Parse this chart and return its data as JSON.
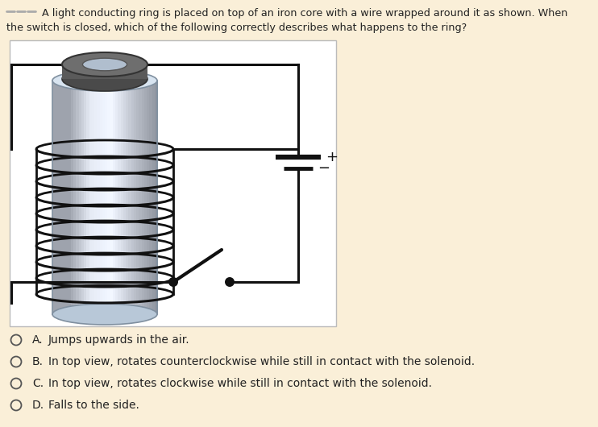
{
  "bg_color": "#faefd8",
  "question_text_line1": "A light conducting ring is placed on top of an iron core with a wire wrapped around it as shown. When",
  "question_text_line2": "the switch is closed, which of the following correctly describes what happens to the ring?",
  "options": [
    {
      "label": "A.",
      "text": "Jumps upwards in the air."
    },
    {
      "label": "B.",
      "text": "In top view, rotates counterclockwise while still in contact with the solenoid."
    },
    {
      "label": "C.",
      "text": "In top view, rotates clockwise while still in contact with the solenoid."
    },
    {
      "label": "D.",
      "text": "Falls to the side."
    }
  ],
  "option_text_color": "#1a1a1a",
  "coil_color": "#111111",
  "wire_color": "#111111",
  "box_bg": "#ffffff",
  "box_border": "#bbbbbb",
  "cyl_light": "#e0e8f4",
  "cyl_mid": "#c8d4e8",
  "cyl_dark": "#a8b4c8",
  "cyl_highlight": "#f0f4fc",
  "ring_dark": "#555555",
  "ring_mid": "#6a6a6a",
  "ring_light": "#888888",
  "ring_hole": "#b8c4d4"
}
